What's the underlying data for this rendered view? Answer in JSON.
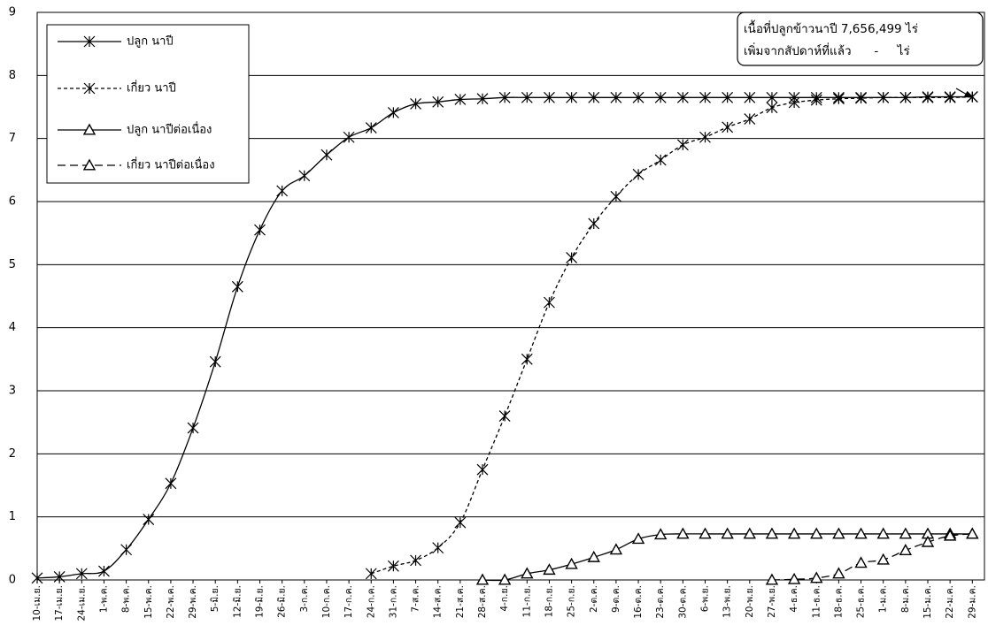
{
  "chart_data": {
    "type": "line",
    "categories": [
      "10-เม.ย.",
      "17-เม.ย.",
      "24-เม.ย.",
      "1-พ.ค.",
      "8-พ.ค.",
      "15-พ.ค.",
      "22-พ.ค.",
      "29-พ.ค.",
      "5-มิ.ย.",
      "12-มิ.ย.",
      "19-มิ.ย.",
      "26-มิ.ย.",
      "3-ก.ค.",
      "10-ก.ค.",
      "17-ก.ค.",
      "24-ก.ค.",
      "31-ก.ค.",
      "7-ส.ค.",
      "14-ส.ค.",
      "21-ส.ค.",
      "28-ส.ค.",
      "4-ก.ย.",
      "11-ก.ย.",
      "18-ก.ย.",
      "25-ก.ย.",
      "2-ต.ค.",
      "9-ต.ค.",
      "16-ต.ค.",
      "23-ต.ค.",
      "30-ต.ค.",
      "6-พ.ย.",
      "13-พ.ย.",
      "20-พ.ย.",
      "27-พ.ย.",
      "4-ธ.ค.",
      "11-ธ.ค.",
      "18-ธ.ค.",
      "25-ธ.ค.",
      "1-ม.ค.",
      "8-ม.ค.",
      "15-ม.ค.",
      "22-ม.ค.",
      "29-ม.ค."
    ],
    "series": [
      {
        "name": "ปลูก นาปี",
        "color": "#000000",
        "line_style": "solid",
        "marker": "star",
        "values": [
          0.03,
          0.05,
          0.1,
          0.14,
          0.48,
          0.96,
          1.53,
          2.41,
          3.46,
          4.65,
          5.55,
          6.17,
          6.41,
          6.74,
          7.02,
          7.17,
          7.41,
          7.55,
          7.58,
          7.62,
          7.63,
          7.65,
          7.65,
          7.65,
          7.65,
          7.65,
          7.65,
          7.65,
          7.65,
          7.65,
          7.65,
          7.65,
          7.65,
          7.65,
          7.65,
          7.65,
          7.65,
          7.65,
          7.65,
          7.65,
          7.66,
          7.66,
          7.66
        ]
      },
      {
        "name": "เกี่ยว นาปี",
        "color": "#000000",
        "line_style": "dotted",
        "marker": "star",
        "values": [
          null,
          null,
          null,
          null,
          null,
          null,
          null,
          null,
          null,
          null,
          null,
          null,
          null,
          null,
          null,
          0.1,
          0.22,
          0.31,
          0.51,
          0.91,
          1.75,
          2.6,
          3.5,
          4.4,
          5.11,
          5.65,
          6.08,
          6.43,
          6.66,
          6.9,
          7.02,
          7.18,
          7.31,
          7.49,
          7.57,
          7.61,
          7.63,
          7.64,
          7.65,
          7.65,
          7.65,
          7.65,
          7.66
        ]
      },
      {
        "name": "ปลูก นาปีต่อเนื่อง",
        "color": "#000000",
        "line_style": "solid",
        "marker": "triangle",
        "values": [
          null,
          null,
          null,
          null,
          null,
          null,
          null,
          null,
          null,
          null,
          null,
          null,
          null,
          null,
          null,
          null,
          null,
          null,
          null,
          null,
          0,
          0,
          0.1,
          0.16,
          0.25,
          0.36,
          0.48,
          0.65,
          0.72,
          0.73,
          0.73,
          0.73,
          0.73,
          0.73,
          0.73,
          0.73,
          0.73,
          0.73,
          0.73,
          0.73,
          0.73,
          0.73,
          0.73
        ]
      },
      {
        "name": "เกี่ยว นาปีต่อเนื่อง",
        "color": "#000000",
        "line_style": "dashed",
        "marker": "triangle",
        "values": [
          null,
          null,
          null,
          null,
          null,
          null,
          null,
          null,
          null,
          null,
          null,
          null,
          null,
          null,
          null,
          null,
          null,
          null,
          null,
          null,
          null,
          null,
          null,
          null,
          null,
          null,
          null,
          null,
          null,
          null,
          null,
          null,
          null,
          0,
          0.01,
          0.03,
          0.1,
          0.27,
          0.32,
          0.47,
          0.6,
          0.7,
          0.73
        ]
      }
    ],
    "annotation": [
      "เนื้อที่ปลูกข้าวนาปี 7,656,499 ไร่",
      "เพิ่มจากสัปดาห์ที่แล้ว      -     ไร่"
    ],
    "ylim": [
      0,
      9
    ],
    "yticks": [
      0,
      1,
      2,
      3,
      4,
      5,
      6,
      7,
      8,
      9
    ],
    "grid": true,
    "legend": "upper left"
  }
}
